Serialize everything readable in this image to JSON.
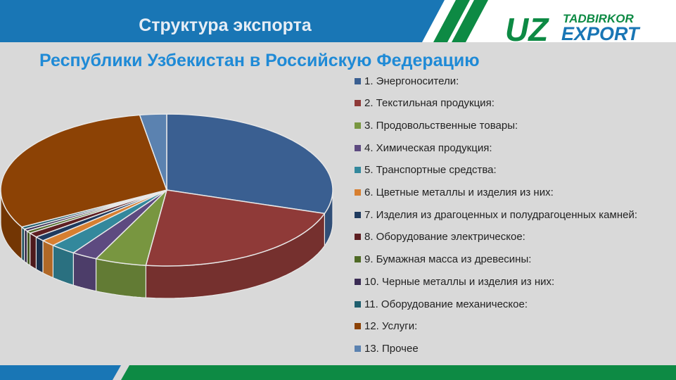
{
  "header": {
    "title": "Структура экспорта",
    "subtitle": "Республики Узбекистан в Российскую Федерацию",
    "colors": {
      "blue": "#1976b5",
      "green": "#0d8a44",
      "subtitle": "#1f8ad6"
    }
  },
  "logo": {
    "main": "UZ",
    "top": "TADBIRKOR",
    "bottom": "EXPORT"
  },
  "chart_data": {
    "type": "pie",
    "style": "3d-exploded",
    "legend_position": "right",
    "slices": [
      {
        "label": "1. Энергоносители:",
        "value": 30.0,
        "color": "#3a5f91"
      },
      {
        "label": "2. Текстильная продукция:",
        "value": 22.0,
        "color": "#8f3a38"
      },
      {
        "label": "3. Продовольственные товары:",
        "value": 5.0,
        "color": "#789640"
      },
      {
        "label": "4. Химическая продукция:",
        "value": 2.5,
        "color": "#5d4a80"
      },
      {
        "label": "5. Транспортные средства:",
        "value": 2.5,
        "color": "#33889c"
      },
      {
        "label": "6. Цветные металлы и изделия из них:",
        "value": 1.4,
        "color": "#d77f30"
      },
      {
        "label": "7. Изделия из драгоценных и полудрагоценных камней:",
        "value": 1.0,
        "color": "#1f3a5e"
      },
      {
        "label": "8. Оборудование электрическое:",
        "value": 1.0,
        "color": "#5e1f22"
      },
      {
        "label": "9. Бумажная масса из древесины:",
        "value": 0.5,
        "color": "#4f6a26"
      },
      {
        "label": "10. Черные металлы и изделия из них:",
        "value": 0.5,
        "color": "#3b2c55"
      },
      {
        "label": "11. Оборудование механическое:",
        "value": 0.5,
        "color": "#1f5e6e"
      },
      {
        "label": "12. Услуги:",
        "value": 30.5,
        "color": "#8c4205"
      },
      {
        "label": "13. Прочее",
        "value": 2.6,
        "color": "#5b82b0"
      }
    ]
  }
}
